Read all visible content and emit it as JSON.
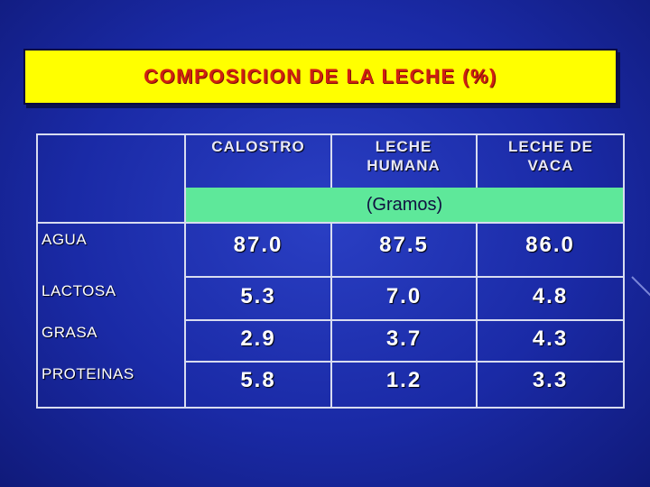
{
  "title": "COMPOSICION DE LA LECHE (%)",
  "table": {
    "headers": [
      "CALOSTRO",
      "LECHE HUMANA",
      "LECHE DE VACA"
    ],
    "units": "(Gramos)",
    "rows": [
      {
        "label": "AGUA",
        "values": [
          "87.0",
          "87.5",
          "86.0"
        ]
      },
      {
        "label": "LACTOSA",
        "values": [
          "5.3",
          "7.0",
          "4.8"
        ]
      },
      {
        "label": "GRASA",
        "values": [
          "2.9",
          "3.7",
          "4.3"
        ]
      },
      {
        "label": "PROTEINAS",
        "values": [
          "5.8",
          "1.2",
          "3.3"
        ]
      }
    ]
  },
  "colors": {
    "title_bg": "#ffff00",
    "title_text": "#d02010",
    "units_band": "#5ee89a",
    "background": "#1a2aa6"
  }
}
